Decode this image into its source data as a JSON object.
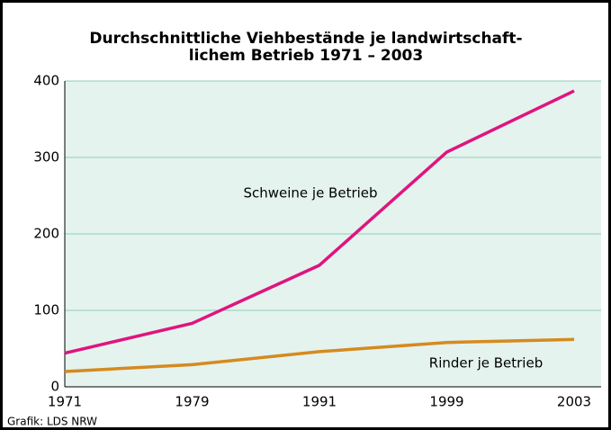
{
  "chart_data": {
    "type": "line",
    "title": [
      "Durchschnittliche Viehbestände je landwirtschaft-",
      "lichem Betrieb 1971 – 2003"
    ],
    "categories": [
      "1971",
      "1979",
      "1991",
      "1999",
      "2003"
    ],
    "series": [
      {
        "name": "Schweine je Betrieb",
        "color": "#e0147f",
        "values": [
          44,
          83,
          159,
          307,
          387
        ]
      },
      {
        "name": "Rinder je Betrieb",
        "color": "#d68a1f",
        "values": [
          20,
          29,
          46,
          58,
          62
        ]
      }
    ],
    "ylim": [
      0,
      400
    ],
    "yticks": [
      0,
      100,
      200,
      300,
      400
    ],
    "grid": true,
    "source": "Grafik: LDS NRW"
  }
}
